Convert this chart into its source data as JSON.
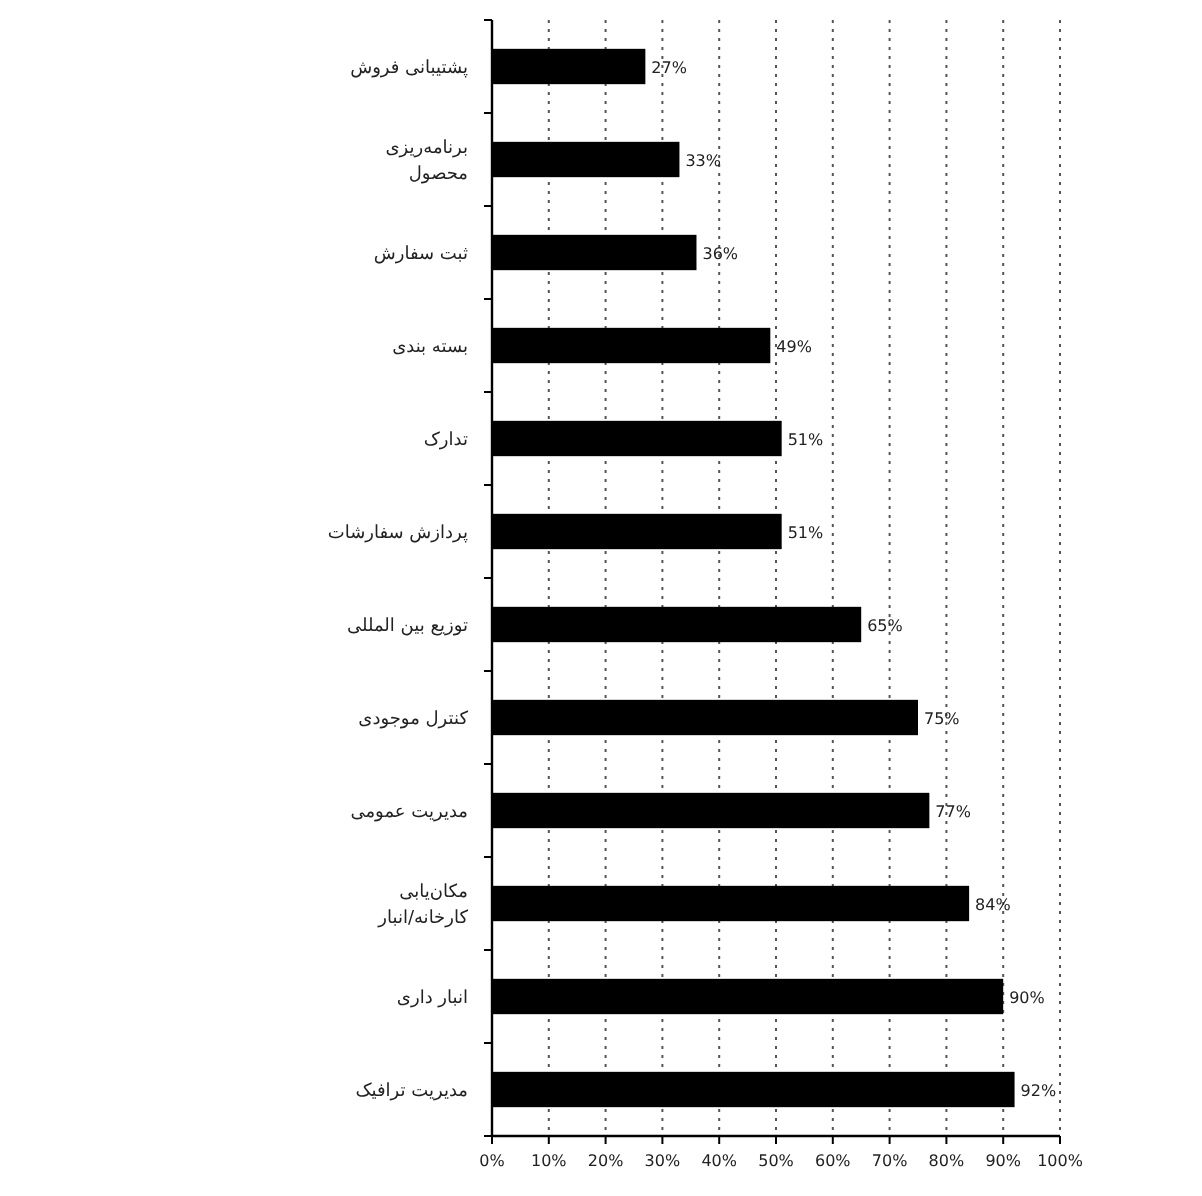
{
  "chart_data": {
    "type": "bar",
    "orientation": "horizontal",
    "categories": [
      "پشتیبانی فروش",
      "برنامه‌ریزی\nمحصول",
      "ثبت سفارش",
      "بسته بندی",
      "تدارک",
      "پردازش سفارشات",
      "توزیع بین المللی",
      "کنترل موجودی",
      "مدیریت عمومی",
      "مکان‌یابی\nکارخانه/انبار",
      "انبار داری",
      "مدیریت ترافیک"
    ],
    "values": [
      27,
      33,
      36,
      49,
      51,
      51,
      65,
      75,
      77,
      84,
      90,
      92
    ],
    "color": "#000000",
    "value_labels": [
      "27%",
      "33%",
      "36%",
      "49%",
      "51%",
      "51%",
      "65%",
      "75%",
      "77%",
      "84%",
      "90%",
      "92%"
    ],
    "xlim": [
      0,
      100
    ],
    "xticks": [
      {
        "value": 0,
        "label": "0%"
      },
      {
        "value": 10,
        "label": "10%"
      },
      {
        "value": 20,
        "label": "20%"
      },
      {
        "value": 30,
        "label": "30%"
      },
      {
        "value": 40,
        "label": "40%"
      },
      {
        "value": 50,
        "label": "50%"
      },
      {
        "value": 60,
        "label": "60%"
      },
      {
        "value": 70,
        "label": "70%"
      },
      {
        "value": 80,
        "label": "80%"
      },
      {
        "value": 90,
        "label": "90%"
      },
      {
        "value": 100,
        "label": "100%"
      }
    ],
    "grid": "x"
  }
}
